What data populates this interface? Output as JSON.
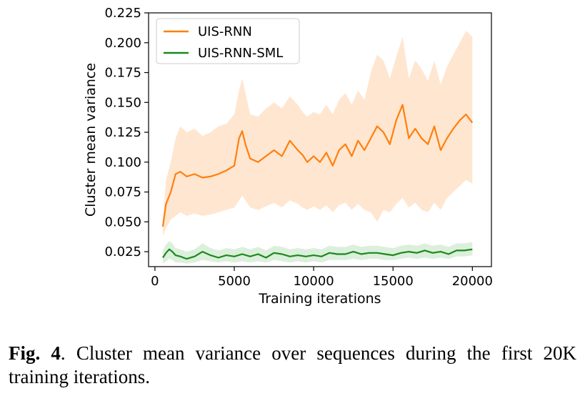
{
  "chart_data": {
    "type": "line",
    "xlabel": "Training iterations",
    "ylabel": "Cluster mean variance",
    "xlim": [
      -400,
      21200
    ],
    "ylim": [
      0.0125,
      0.225
    ],
    "xticks": [
      0,
      5000,
      10000,
      15000,
      20000
    ],
    "xtick_labels": [
      "0",
      "5000",
      "10000",
      "15000",
      "20000"
    ],
    "yticks": [
      0.025,
      0.05,
      0.075,
      0.1,
      0.125,
      0.15,
      0.175,
      0.2,
      0.225
    ],
    "ytick_labels": [
      "0.025",
      "0.050",
      "0.075",
      "0.100",
      "0.125",
      "0.150",
      "0.175",
      "0.200",
      "0.225"
    ],
    "grid": false,
    "legend_position": "top-left",
    "series": [
      {
        "name": "UIS-RNN",
        "color": "#ff7f0e",
        "band_color": "#ffe6d0",
        "x": [
          500,
          700,
          1000,
          1300,
          1600,
          2000,
          2500,
          3000,
          3500,
          4000,
          4500,
          5000,
          5300,
          5500,
          5700,
          6000,
          6500,
          7000,
          7500,
          8000,
          8500,
          9000,
          9300,
          9600,
          10000,
          10400,
          10800,
          11200,
          11600,
          12000,
          12400,
          12800,
          13200,
          13600,
          14000,
          14400,
          14800,
          15200,
          15600,
          16000,
          16400,
          16800,
          17200,
          17600,
          18000,
          18400,
          18800,
          19200,
          19600,
          20000
        ],
        "values": [
          0.046,
          0.065,
          0.075,
          0.09,
          0.092,
          0.088,
          0.09,
          0.087,
          0.088,
          0.09,
          0.093,
          0.097,
          0.12,
          0.126,
          0.115,
          0.103,
          0.1,
          0.105,
          0.11,
          0.105,
          0.118,
          0.11,
          0.106,
          0.1,
          0.105,
          0.1,
          0.108,
          0.097,
          0.11,
          0.115,
          0.105,
          0.118,
          0.11,
          0.12,
          0.13,
          0.125,
          0.115,
          0.135,
          0.148,
          0.12,
          0.128,
          0.12,
          0.115,
          0.13,
          0.11,
          0.12,
          0.128,
          0.135,
          0.14,
          0.133
        ],
        "lower": [
          0.038,
          0.045,
          0.052,
          0.055,
          0.058,
          0.055,
          0.057,
          0.055,
          0.056,
          0.058,
          0.06,
          0.062,
          0.068,
          0.072,
          0.068,
          0.062,
          0.06,
          0.063,
          0.066,
          0.062,
          0.068,
          0.065,
          0.062,
          0.06,
          0.063,
          0.06,
          0.064,
          0.058,
          0.064,
          0.066,
          0.06,
          0.065,
          0.06,
          0.058,
          0.05,
          0.06,
          0.058,
          0.065,
          0.07,
          0.062,
          0.066,
          0.06,
          0.058,
          0.066,
          0.06,
          0.07,
          0.075,
          0.08,
          0.085,
          0.082
        ],
        "upper": [
          0.052,
          0.085,
          0.1,
          0.12,
          0.13,
          0.125,
          0.128,
          0.122,
          0.125,
          0.13,
          0.132,
          0.14,
          0.16,
          0.17,
          0.158,
          0.14,
          0.138,
          0.145,
          0.15,
          0.145,
          0.155,
          0.148,
          0.142,
          0.138,
          0.142,
          0.14,
          0.148,
          0.14,
          0.152,
          0.158,
          0.148,
          0.16,
          0.152,
          0.175,
          0.19,
          0.185,
          0.17,
          0.188,
          0.205,
          0.17,
          0.185,
          0.178,
          0.168,
          0.185,
          0.165,
          0.18,
          0.19,
          0.2,
          0.21,
          0.205
        ]
      },
      {
        "name": "UIS-RNN-SML",
        "color": "#1a8a1a",
        "band_color": "#dcefdc",
        "x": [
          500,
          700,
          900,
          1100,
          1300,
          1600,
          2000,
          2500,
          3000,
          3500,
          4000,
          4500,
          5000,
          5500,
          6000,
          6500,
          7000,
          7500,
          8000,
          8500,
          9000,
          9500,
          10000,
          10500,
          11000,
          11500,
          12000,
          12500,
          13000,
          13500,
          14000,
          14500,
          15000,
          15500,
          16000,
          16500,
          17000,
          17500,
          18000,
          18500,
          19000,
          19500,
          20000
        ],
        "values": [
          0.02,
          0.024,
          0.027,
          0.025,
          0.022,
          0.021,
          0.019,
          0.021,
          0.025,
          0.022,
          0.02,
          0.022,
          0.021,
          0.023,
          0.021,
          0.023,
          0.02,
          0.024,
          0.023,
          0.021,
          0.022,
          0.021,
          0.022,
          0.021,
          0.024,
          0.023,
          0.023,
          0.025,
          0.023,
          0.024,
          0.024,
          0.023,
          0.022,
          0.024,
          0.025,
          0.024,
          0.026,
          0.024,
          0.025,
          0.023,
          0.026,
          0.026,
          0.027
        ],
        "lower": [
          0.015,
          0.017,
          0.019,
          0.018,
          0.016,
          0.016,
          0.015,
          0.016,
          0.018,
          0.017,
          0.016,
          0.017,
          0.016,
          0.017,
          0.016,
          0.017,
          0.016,
          0.018,
          0.017,
          0.016,
          0.017,
          0.016,
          0.017,
          0.016,
          0.018,
          0.018,
          0.018,
          0.019,
          0.018,
          0.019,
          0.019,
          0.018,
          0.018,
          0.019,
          0.02,
          0.019,
          0.02,
          0.019,
          0.02,
          0.019,
          0.021,
          0.021,
          0.022
        ],
        "upper": [
          0.026,
          0.031,
          0.034,
          0.032,
          0.028,
          0.027,
          0.025,
          0.027,
          0.032,
          0.028,
          0.026,
          0.028,
          0.027,
          0.029,
          0.027,
          0.029,
          0.026,
          0.03,
          0.029,
          0.027,
          0.028,
          0.027,
          0.028,
          0.027,
          0.03,
          0.029,
          0.029,
          0.031,
          0.029,
          0.03,
          0.03,
          0.029,
          0.028,
          0.03,
          0.031,
          0.03,
          0.032,
          0.03,
          0.031,
          0.029,
          0.032,
          0.032,
          0.033
        ]
      }
    ]
  },
  "caption": {
    "label": "Fig. 4",
    "text": ". Cluster mean variance over sequences during the first 20K training iterations."
  }
}
